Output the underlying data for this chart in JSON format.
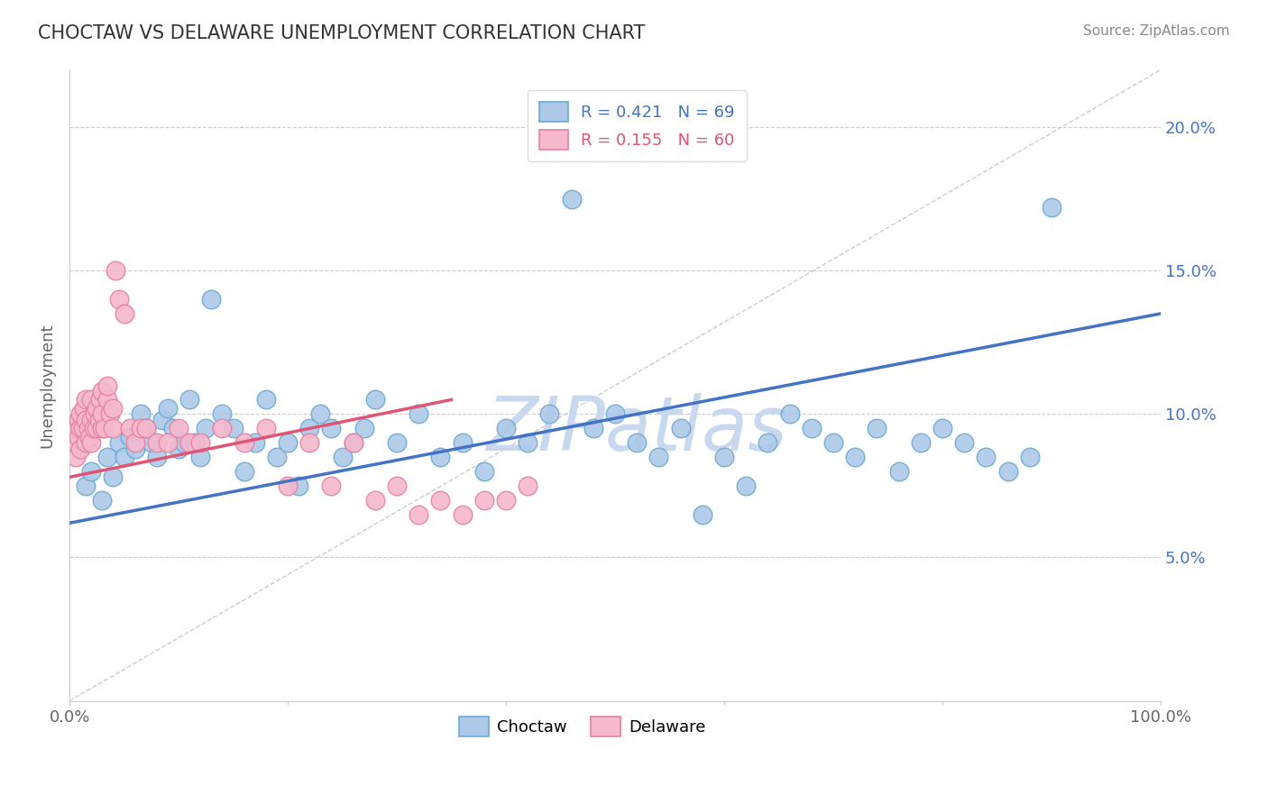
{
  "title": "CHOCTAW VS DELAWARE UNEMPLOYMENT CORRELATION CHART",
  "source": "Source: ZipAtlas.com",
  "ylabel": "Unemployment",
  "xlim": [
    0,
    100
  ],
  "ylim": [
    0,
    22
  ],
  "ytick_values": [
    5,
    10,
    15,
    20
  ],
  "ytick_labels": [
    "5.0%",
    "10.0%",
    "15.0%",
    "20.0%"
  ],
  "xtick_values": [
    0,
    20,
    40,
    60,
    80,
    100
  ],
  "xtick_show": [
    "0.0%",
    "",
    "",
    "",
    "",
    "100.0%"
  ],
  "choctaw_color": "#adc9e8",
  "choctaw_edge_color": "#6aaad4",
  "delaware_color": "#f5b8cc",
  "delaware_edge_color": "#e87fa0",
  "blue_line_color": "#4472c4",
  "pink_line_color": "#e05575",
  "ref_line_color": "#c0c0c0",
  "legend_label_blue": "R = 0.421   N = 69",
  "legend_label_pink": "R = 0.155   N = 60",
  "watermark": "ZIPatlas",
  "watermark_color": "#c8d8ee",
  "blue_trend_x0": 0,
  "blue_trend_y0": 6.2,
  "blue_trend_x1": 100,
  "blue_trend_y1": 13.5,
  "pink_trend_x0": 0,
  "pink_trend_y0": 7.8,
  "pink_trend_x1": 35,
  "pink_trend_y1": 10.5,
  "choctaw_x": [
    1.5,
    2.0,
    3.0,
    3.5,
    4.0,
    4.5,
    5.0,
    5.5,
    6.0,
    6.5,
    7.0,
    7.5,
    8.0,
    8.5,
    9.0,
    9.5,
    10.0,
    10.5,
    11.0,
    11.5,
    12.0,
    12.5,
    13.0,
    14.0,
    15.0,
    16.0,
    17.0,
    18.0,
    19.0,
    20.0,
    21.0,
    22.0,
    23.0,
    24.0,
    25.0,
    26.0,
    27.0,
    28.0,
    30.0,
    32.0,
    34.0,
    36.0,
    38.0,
    40.0,
    42.0,
    44.0,
    46.0,
    48.0,
    50.0,
    52.0,
    54.0,
    56.0,
    58.0,
    60.0,
    62.0,
    64.0,
    66.0,
    68.0,
    70.0,
    72.0,
    74.0,
    76.0,
    78.0,
    80.0,
    82.0,
    84.0,
    86.0,
    88.0,
    90.0
  ],
  "choctaw_y": [
    7.5,
    8.0,
    7.0,
    8.5,
    7.8,
    9.0,
    8.5,
    9.2,
    8.8,
    10.0,
    9.5,
    9.0,
    8.5,
    9.8,
    10.2,
    9.5,
    8.8,
    9.0,
    10.5,
    9.0,
    8.5,
    9.5,
    14.0,
    10.0,
    9.5,
    8.0,
    9.0,
    10.5,
    8.5,
    9.0,
    7.5,
    9.5,
    10.0,
    9.5,
    8.5,
    9.0,
    9.5,
    10.5,
    9.0,
    10.0,
    8.5,
    9.0,
    8.0,
    9.5,
    9.0,
    10.0,
    17.5,
    9.5,
    10.0,
    9.0,
    8.5,
    9.5,
    6.5,
    8.5,
    7.5,
    9.0,
    10.0,
    9.5,
    9.0,
    8.5,
    9.5,
    8.0,
    9.0,
    9.5,
    9.0,
    8.5,
    8.0,
    8.5,
    17.2
  ],
  "delaware_x": [
    0.3,
    0.5,
    0.6,
    0.8,
    0.8,
    1.0,
    1.0,
    1.0,
    1.2,
    1.3,
    1.5,
    1.5,
    1.5,
    1.7,
    1.8,
    2.0,
    2.0,
    2.0,
    2.2,
    2.3,
    2.5,
    2.5,
    2.7,
    2.8,
    3.0,
    3.0,
    3.0,
    3.2,
    3.5,
    3.5,
    3.7,
    4.0,
    4.0,
    4.2,
    4.5,
    5.0,
    5.5,
    6.0,
    6.5,
    7.0,
    8.0,
    9.0,
    10.0,
    11.0,
    12.0,
    14.0,
    16.0,
    18.0,
    20.0,
    22.0,
    24.0,
    26.0,
    28.0,
    30.0,
    32.0,
    34.0,
    36.0,
    38.0,
    40.0,
    42.0
  ],
  "delaware_y": [
    9.0,
    9.5,
    8.5,
    9.2,
    9.8,
    8.8,
    9.5,
    10.0,
    9.5,
    10.2,
    9.0,
    9.8,
    10.5,
    9.5,
    9.2,
    9.0,
    9.8,
    10.5,
    9.5,
    10.0,
    9.5,
    10.2,
    9.8,
    10.5,
    9.5,
    10.0,
    10.8,
    9.5,
    10.5,
    11.0,
    10.0,
    9.5,
    10.2,
    15.0,
    14.0,
    13.5,
    9.5,
    9.0,
    9.5,
    9.5,
    9.0,
    9.0,
    9.5,
    9.0,
    9.0,
    9.5,
    9.0,
    9.5,
    7.5,
    9.0,
    7.5,
    9.0,
    7.0,
    7.5,
    6.5,
    7.0,
    6.5,
    7.0,
    7.0,
    7.5
  ]
}
